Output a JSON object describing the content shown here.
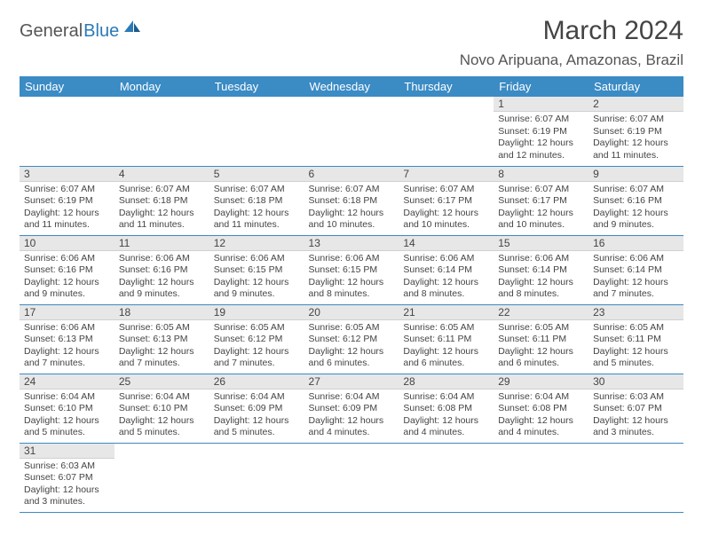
{
  "logo": {
    "part1": "General",
    "part2": "Blue"
  },
  "title": "March 2024",
  "location": "Novo Aripuana, Amazonas, Brazil",
  "colors": {
    "header_bg": "#3b8bc4",
    "header_text": "#ffffff",
    "daybar_bg": "#e7e7e7",
    "row_border": "#3b8bc4",
    "text": "#444444",
    "logo_blue": "#2b7ab8"
  },
  "weekdays": [
    "Sunday",
    "Monday",
    "Tuesday",
    "Wednesday",
    "Thursday",
    "Friday",
    "Saturday"
  ],
  "blanks_before": 5,
  "days": [
    {
      "n": "1",
      "sr": "6:07 AM",
      "ss": "6:19 PM",
      "dl": "12 hours and 12 minutes."
    },
    {
      "n": "2",
      "sr": "6:07 AM",
      "ss": "6:19 PM",
      "dl": "12 hours and 11 minutes."
    },
    {
      "n": "3",
      "sr": "6:07 AM",
      "ss": "6:19 PM",
      "dl": "12 hours and 11 minutes."
    },
    {
      "n": "4",
      "sr": "6:07 AM",
      "ss": "6:18 PM",
      "dl": "12 hours and 11 minutes."
    },
    {
      "n": "5",
      "sr": "6:07 AM",
      "ss": "6:18 PM",
      "dl": "12 hours and 11 minutes."
    },
    {
      "n": "6",
      "sr": "6:07 AM",
      "ss": "6:18 PM",
      "dl": "12 hours and 10 minutes."
    },
    {
      "n": "7",
      "sr": "6:07 AM",
      "ss": "6:17 PM",
      "dl": "12 hours and 10 minutes."
    },
    {
      "n": "8",
      "sr": "6:07 AM",
      "ss": "6:17 PM",
      "dl": "12 hours and 10 minutes."
    },
    {
      "n": "9",
      "sr": "6:07 AM",
      "ss": "6:16 PM",
      "dl": "12 hours and 9 minutes."
    },
    {
      "n": "10",
      "sr": "6:06 AM",
      "ss": "6:16 PM",
      "dl": "12 hours and 9 minutes."
    },
    {
      "n": "11",
      "sr": "6:06 AM",
      "ss": "6:16 PM",
      "dl": "12 hours and 9 minutes."
    },
    {
      "n": "12",
      "sr": "6:06 AM",
      "ss": "6:15 PM",
      "dl": "12 hours and 9 minutes."
    },
    {
      "n": "13",
      "sr": "6:06 AM",
      "ss": "6:15 PM",
      "dl": "12 hours and 8 minutes."
    },
    {
      "n": "14",
      "sr": "6:06 AM",
      "ss": "6:14 PM",
      "dl": "12 hours and 8 minutes."
    },
    {
      "n": "15",
      "sr": "6:06 AM",
      "ss": "6:14 PM",
      "dl": "12 hours and 8 minutes."
    },
    {
      "n": "16",
      "sr": "6:06 AM",
      "ss": "6:14 PM",
      "dl": "12 hours and 7 minutes."
    },
    {
      "n": "17",
      "sr": "6:06 AM",
      "ss": "6:13 PM",
      "dl": "12 hours and 7 minutes."
    },
    {
      "n": "18",
      "sr": "6:05 AM",
      "ss": "6:13 PM",
      "dl": "12 hours and 7 minutes."
    },
    {
      "n": "19",
      "sr": "6:05 AM",
      "ss": "6:12 PM",
      "dl": "12 hours and 7 minutes."
    },
    {
      "n": "20",
      "sr": "6:05 AM",
      "ss": "6:12 PM",
      "dl": "12 hours and 6 minutes."
    },
    {
      "n": "21",
      "sr": "6:05 AM",
      "ss": "6:11 PM",
      "dl": "12 hours and 6 minutes."
    },
    {
      "n": "22",
      "sr": "6:05 AM",
      "ss": "6:11 PM",
      "dl": "12 hours and 6 minutes."
    },
    {
      "n": "23",
      "sr": "6:05 AM",
      "ss": "6:11 PM",
      "dl": "12 hours and 5 minutes."
    },
    {
      "n": "24",
      "sr": "6:04 AM",
      "ss": "6:10 PM",
      "dl": "12 hours and 5 minutes."
    },
    {
      "n": "25",
      "sr": "6:04 AM",
      "ss": "6:10 PM",
      "dl": "12 hours and 5 minutes."
    },
    {
      "n": "26",
      "sr": "6:04 AM",
      "ss": "6:09 PM",
      "dl": "12 hours and 5 minutes."
    },
    {
      "n": "27",
      "sr": "6:04 AM",
      "ss": "6:09 PM",
      "dl": "12 hours and 4 minutes."
    },
    {
      "n": "28",
      "sr": "6:04 AM",
      "ss": "6:08 PM",
      "dl": "12 hours and 4 minutes."
    },
    {
      "n": "29",
      "sr": "6:04 AM",
      "ss": "6:08 PM",
      "dl": "12 hours and 4 minutes."
    },
    {
      "n": "30",
      "sr": "6:03 AM",
      "ss": "6:07 PM",
      "dl": "12 hours and 3 minutes."
    },
    {
      "n": "31",
      "sr": "6:03 AM",
      "ss": "6:07 PM",
      "dl": "12 hours and 3 minutes."
    }
  ],
  "labels": {
    "sunrise": "Sunrise: ",
    "sunset": "Sunset: ",
    "daylight": "Daylight: "
  }
}
